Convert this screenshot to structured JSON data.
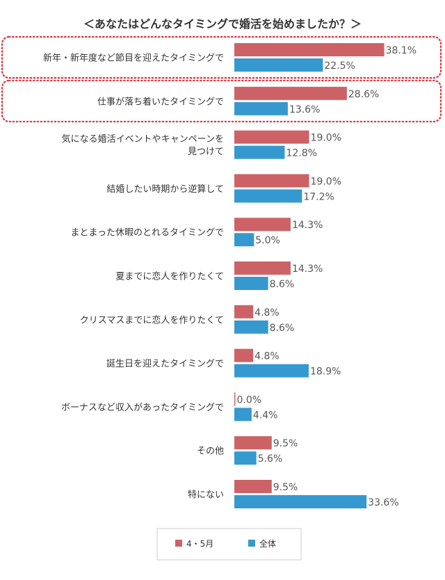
{
  "chart_data": {
    "type": "bar",
    "orientation": "horizontal",
    "title": "＜あなたはどんなタイミングで婚活を始めましたか？＞",
    "unit": "%",
    "categories": [
      [
        "新年・新年度など節目を迎えたタイミングで"
      ],
      [
        "仕事が落ち着いたタイミングで"
      ],
      [
        "気になる婚活イベントやキャンペーンを",
        "見つけて"
      ],
      [
        "結婚したい時期から逆算して"
      ],
      [
        "まとまった休暇のとれるタイミングで"
      ],
      [
        "夏までに恋人を作りたくて"
      ],
      [
        "クリスマスまでに恋人を作りたくて"
      ],
      [
        "誕生日を迎えたタイミングで"
      ],
      [
        "ボーナスなど収入があったタイミングで"
      ],
      [
        "その他"
      ],
      [
        "特にない"
      ]
    ],
    "highlighted": [
      0,
      1
    ],
    "series": [
      {
        "name": "4・5月",
        "color": "#cd6266",
        "values": [
          38.1,
          28.6,
          19.0,
          19.0,
          14.3,
          14.3,
          4.8,
          4.8,
          0.0,
          9.5,
          9.5
        ]
      },
      {
        "name": "全体",
        "color": "#3599cf",
        "values": [
          22.5,
          13.6,
          12.8,
          17.2,
          5.0,
          8.6,
          8.6,
          18.9,
          4.4,
          5.6,
          33.6
        ]
      }
    ],
    "legend": "bottom"
  }
}
